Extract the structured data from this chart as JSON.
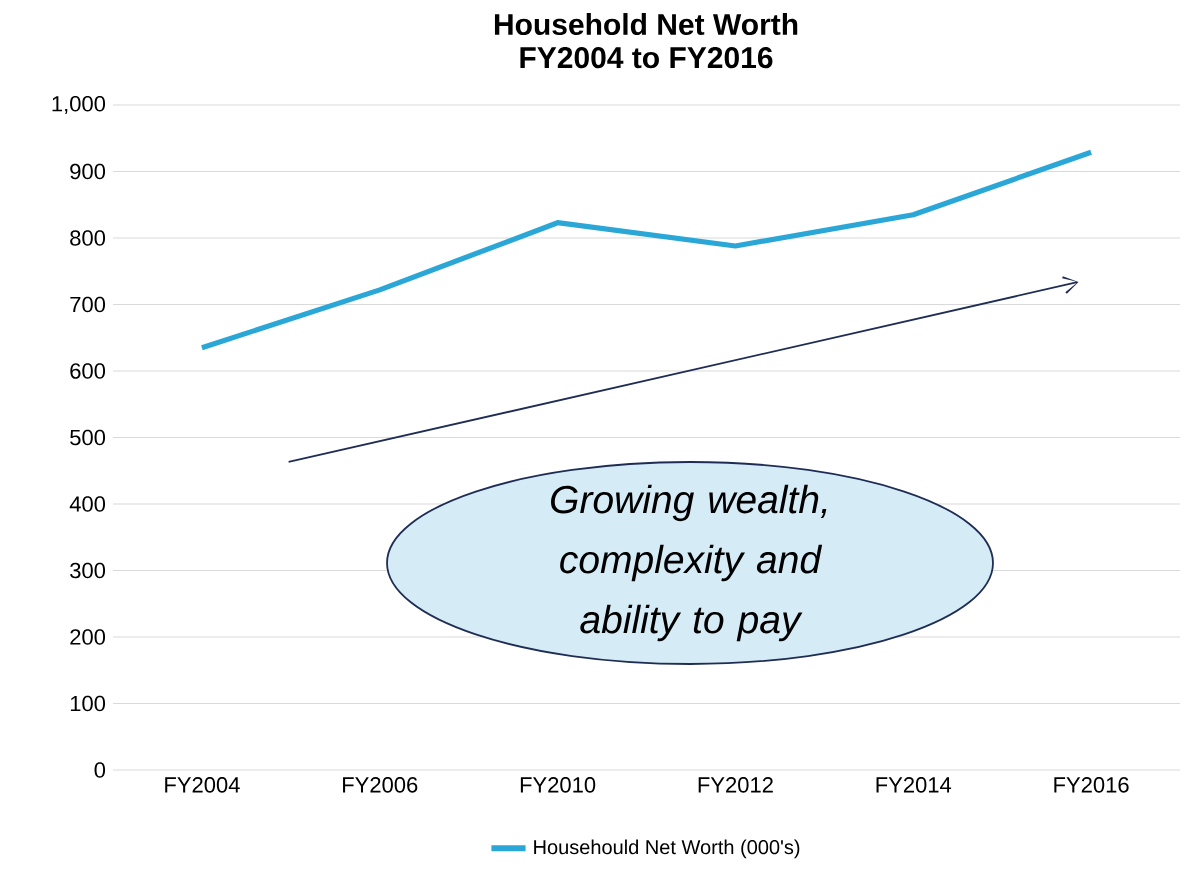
{
  "chart_data": {
    "type": "line",
    "title": "Household Net Worth",
    "subtitle": "FY2004 to FY2016",
    "categories": [
      "FY2004",
      "FY2006",
      "FY2010",
      "FY2012",
      "FY2014",
      "FY2016"
    ],
    "series": [
      {
        "name": "Househould Net Worth (000's)",
        "color": "#2aa7d6",
        "values": [
          635,
          722,
          823,
          788,
          835,
          929
        ]
      }
    ],
    "ylim": [
      0,
      1000
    ],
    "yticks": [
      0,
      100,
      200,
      300,
      400,
      500,
      600,
      700,
      800,
      900,
      {
        "value": 1000,
        "label": "1,000"
      }
    ],
    "grid": "y",
    "legend": "bottom",
    "marker": "none",
    "line_style": "solid",
    "annotations": [
      "Growing wealth, complexity and ability to pay"
    ]
  }
}
